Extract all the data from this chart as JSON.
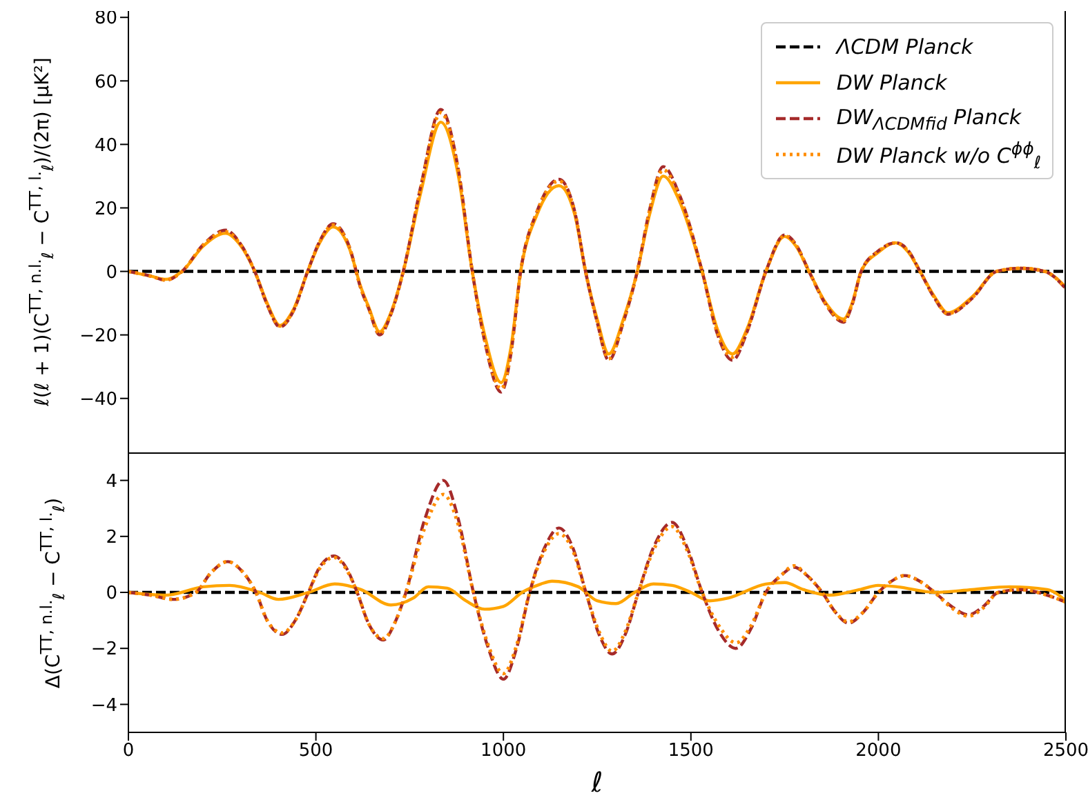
{
  "chart_data": [
    {
      "type": "line",
      "ylabel": "ℓ(ℓ + 1)(C$^{TT, n.l.}$$_{ℓ}$ − C$^{TT, l.}$$_{ℓ}$)/(2π) [μK²]",
      "xlim": [
        0,
        2500
      ],
      "ylim": [
        -57,
        82
      ],
      "yticks": [
        -40,
        -20,
        0,
        20,
        40,
        60,
        80
      ],
      "tick_labels": "y",
      "legend": "top right",
      "x": [
        0,
        60,
        100,
        143,
        200,
        259,
        300,
        337,
        370,
        404,
        440,
        478,
        510,
        546,
        590,
        620,
        640,
        670,
        700,
        733,
        780,
        833,
        880,
        917,
        950,
        994,
        1020,
        1046,
        1090,
        1148,
        1190,
        1219,
        1250,
        1281,
        1320,
        1357,
        1390,
        1426,
        1470,
        1530,
        1570,
        1611,
        1650,
        1700,
        1750,
        1780,
        1815,
        1860,
        1907,
        1930,
        1954,
        2000,
        2046,
        2080,
        2111,
        2150,
        2185,
        2250,
        2315,
        2380,
        2444,
        2500
      ],
      "series": [
        {
          "name": "ΛCDM  Planck",
          "color": "#000000",
          "line_style": "dashed",
          "x": [
            0,
            2500
          ],
          "values": [
            0,
            0
          ]
        },
        {
          "name": "DW  Planck",
          "color": "#ffa500",
          "line_style": "solid",
          "values": [
            0,
            -1.5,
            -2.5,
            0,
            8,
            12,
            8,
            0,
            -10,
            -17,
            -12,
            0,
            9,
            14,
            7,
            -5,
            -11,
            -19,
            -13,
            0,
            25,
            47,
            30,
            0,
            -20,
            -35,
            -24,
            0,
            18,
            27,
            18,
            0,
            -15,
            -26,
            -15,
            0,
            18,
            30,
            22,
            0,
            -18,
            -26,
            -18,
            0,
            11,
            8,
            0,
            -10,
            -15,
            -10,
            0,
            6,
            9,
            6,
            0,
            -8,
            -13,
            -8,
            0,
            1,
            0,
            -5
          ]
        },
        {
          "name": "DW$_{ΛCDMfid}$  Planck",
          "color": "#a52a2a",
          "line_style": "dashed",
          "values": [
            0,
            -1.5,
            -2.8,
            0,
            8.5,
            13,
            8.5,
            0,
            -10.5,
            -17.5,
            -12.5,
            0,
            9.5,
            15,
            7.5,
            -5.5,
            -11.5,
            -20,
            -13.5,
            0,
            27,
            51,
            32,
            0,
            -22,
            -38,
            -26,
            0,
            19,
            29,
            19,
            0,
            -16,
            -28,
            -16,
            0,
            19.5,
            33,
            24,
            0,
            -19.5,
            -28,
            -19,
            0,
            11.5,
            8.5,
            0,
            -10.5,
            -16,
            -10.5,
            0,
            6.5,
            9,
            6.5,
            0,
            -8.5,
            -13.5,
            -8.5,
            0,
            1,
            0,
            -5.5
          ]
        },
        {
          "name": "DW  Planck w/o C$^{ϕϕ}$$_{ℓ}$",
          "color": "#ff8c00",
          "line_style": "dotted",
          "values": [
            0,
            -1.5,
            -2.7,
            0,
            8.3,
            12.5,
            8.3,
            0,
            -10.3,
            -17.2,
            -12.3,
            0,
            9.3,
            14.6,
            7.3,
            -5.3,
            -11.3,
            -19.6,
            -13.3,
            0,
            26.5,
            50,
            31.5,
            0,
            -21.5,
            -37,
            -25.5,
            0,
            18.8,
            28.5,
            18.8,
            0,
            -15.8,
            -27.5,
            -15.8,
            0,
            19.2,
            32,
            23.5,
            0,
            -19,
            -27,
            -18.5,
            0,
            11.2,
            8.3,
            0,
            -10.3,
            -15.5,
            -10.3,
            0,
            6.3,
            9,
            6.3,
            0,
            -8.3,
            -13.3,
            -8.3,
            0,
            1,
            0,
            -5.3
          ]
        }
      ]
    },
    {
      "type": "line",
      "xlabel": "ℓ",
      "ylabel": "Δ(C$^{TT, n.l.}$$_{ℓ}$ − C$^{TT, l.}$$_{ℓ}$)",
      "xlim": [
        0,
        2500
      ],
      "xticks": [
        0,
        500,
        1000,
        1500,
        2000,
        2500
      ],
      "ylim": [
        -5,
        5
      ],
      "yticks": [
        -4,
        -2,
        0,
        2,
        4
      ],
      "x": [
        0,
        60,
        120,
        180,
        220,
        265,
        300,
        340,
        370,
        410,
        445,
        480,
        510,
        548,
        580,
        610,
        640,
        680,
        710,
        740,
        790,
        840,
        880,
        920,
        960,
        1000,
        1035,
        1070,
        1110,
        1148,
        1185,
        1220,
        1255,
        1290,
        1325,
        1360,
        1400,
        1450,
        1490,
        1530,
        1575,
        1620,
        1660,
        1700,
        1740,
        1775,
        1810,
        1850,
        1885,
        1920,
        1960,
        2000,
        2035,
        2070,
        2110,
        2150,
        2195,
        2240,
        2280,
        2320,
        2380,
        2450,
        2500
      ],
      "series": [
        {
          "color": "#000000",
          "line_style": "dashed",
          "x": [
            0,
            2500
          ],
          "values": [
            0,
            0
          ]
        },
        {
          "color": "#ffa500",
          "line_style": "solid",
          "x": [
            0,
            100,
            200,
            270,
            350,
            400,
            480,
            550,
            620,
            700,
            760,
            800,
            850,
            900,
            950,
            1000,
            1050,
            1100,
            1130,
            1200,
            1250,
            1300,
            1350,
            1400,
            1450,
            1500,
            1550,
            1600,
            1700,
            1750,
            1800,
            1870,
            1950,
            2000,
            2050,
            2150,
            2250,
            2350,
            2450,
            2500
          ],
          "values": [
            0,
            -0.1,
            0.2,
            0.25,
            0,
            -0.25,
            0,
            0.3,
            0.1,
            -0.45,
            -0.2,
            0.2,
            0.15,
            -0.3,
            -0.6,
            -0.5,
            0,
            0.3,
            0.4,
            0.2,
            -0.3,
            -0.4,
            0,
            0.3,
            0.25,
            0,
            -0.3,
            -0.2,
            0.3,
            0.35,
            0.1,
            -0.1,
            0.1,
            0.25,
            0.2,
            0,
            0.1,
            0.2,
            0.1,
            -0.3
          ]
        },
        {
          "color": "#a52a2a",
          "line_style": "dashed",
          "values": [
            0,
            -0.1,
            -0.25,
            0,
            0.7,
            1.1,
            0.8,
            0,
            -1.0,
            -1.5,
            -1.0,
            0,
            0.9,
            1.3,
            0.9,
            0,
            -1.1,
            -1.7,
            -1.1,
            0,
            2.6,
            4.0,
            2.6,
            0,
            -2.0,
            -3.1,
            -2.0,
            0,
            1.6,
            2.3,
            1.6,
            0,
            -1.5,
            -2.2,
            -1.5,
            0,
            1.6,
            2.5,
            1.6,
            0,
            -1.4,
            -2.0,
            -1.3,
            0,
            0.6,
            0.9,
            0.6,
            0,
            -0.7,
            -1.1,
            -0.7,
            0,
            0.4,
            0.6,
            0.4,
            0,
            -0.5,
            -0.8,
            -0.5,
            0,
            0.1,
            -0.1,
            -0.35
          ]
        },
        {
          "color": "#ff8c00",
          "line_style": "dotted",
          "values": [
            0,
            -0.1,
            -0.25,
            0,
            0.7,
            1.1,
            0.8,
            0,
            -1.0,
            -1.45,
            -1.0,
            0,
            0.85,
            1.25,
            0.85,
            0,
            -1.1,
            -1.65,
            -1.1,
            0,
            2.3,
            3.5,
            2.4,
            0,
            -1.9,
            -2.9,
            -1.9,
            0,
            1.5,
            2.1,
            1.5,
            0,
            -1.4,
            -2.1,
            -1.4,
            0,
            1.5,
            2.35,
            1.5,
            0,
            -1.2,
            -1.8,
            -1.2,
            0,
            0.6,
            0.95,
            0.6,
            0,
            -0.7,
            -1.05,
            -0.7,
            0,
            0.4,
            0.6,
            0.4,
            0,
            -0.55,
            -0.85,
            -0.55,
            0,
            0.1,
            -0.1,
            -0.35
          ]
        }
      ]
    }
  ]
}
